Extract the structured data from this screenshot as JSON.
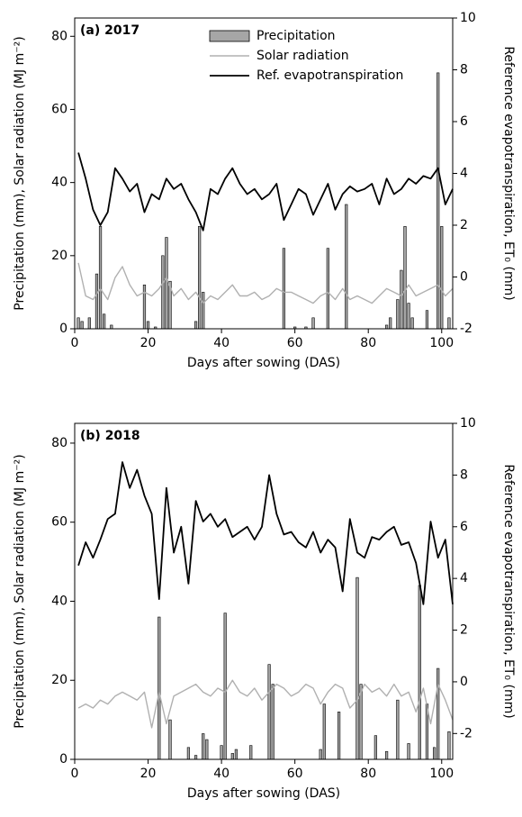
{
  "chart_data": [
    {
      "type": "bar-line",
      "title": "(a) 2017",
      "xlabel": "Days after sowing (DAS)",
      "ylabel": "Precipitation (mm), Solar radiation (MJ m⁻²)",
      "y2label": "Reference evapotranspiration, ET₀ (mm)",
      "xlim": [
        0,
        103
      ],
      "xticks": [
        0,
        20,
        40,
        60,
        80,
        100
      ],
      "ylim": [
        0,
        85
      ],
      "yticks": [
        0,
        20,
        40,
        60,
        80
      ],
      "y2lim": [
        -2,
        10
      ],
      "y2ticks": [
        -2,
        0,
        2,
        4,
        6,
        8,
        10
      ],
      "legend": "top",
      "series": [
        {
          "name": "Precipitation",
          "type": "bar",
          "axis": "y",
          "color": "#a6a6a6",
          "x": [
            1,
            2,
            4,
            6,
            7,
            8,
            10,
            19,
            20,
            22,
            24,
            25,
            26,
            33,
            34,
            35,
            57,
            60,
            63,
            65,
            69,
            74,
            85,
            86,
            88,
            89,
            90,
            91,
            92,
            96,
            99,
            100,
            102
          ],
          "values": [
            3,
            2,
            3,
            15,
            28,
            4,
            1,
            12,
            2,
            0.5,
            20,
            25,
            13,
            2,
            28,
            10,
            22,
            0.5,
            0.5,
            3,
            22,
            34,
            1,
            3,
            8,
            16,
            28,
            7,
            3,
            5,
            70,
            28,
            3
          ]
        },
        {
          "name": "Solar radiation",
          "type": "line",
          "axis": "y",
          "color": "#b0b0b0",
          "x": [
            1,
            3,
            5,
            7,
            9,
            11,
            13,
            15,
            17,
            19,
            21,
            23,
            25,
            27,
            29,
            31,
            33,
            35,
            37,
            39,
            41,
            43,
            45,
            47,
            49,
            51,
            53,
            55,
            57,
            59,
            61,
            63,
            65,
            67,
            69,
            71,
            73,
            75,
            77,
            79,
            81,
            83,
            85,
            87,
            89,
            91,
            93,
            95,
            97,
            99,
            101,
            103
          ],
          "values": [
            18,
            9,
            8,
            11,
            8,
            14,
            17,
            12,
            9,
            10,
            9,
            11,
            14,
            9,
            11,
            8,
            10,
            7,
            9,
            8,
            10,
            12,
            9,
            9,
            10,
            8,
            9,
            11,
            10,
            10,
            9,
            8,
            7,
            9,
            10,
            8,
            11,
            8,
            9,
            8,
            7,
            9,
            11,
            10,
            9,
            12,
            9,
            10,
            11,
            12,
            9,
            11
          ]
        },
        {
          "name": "Ref. evapotranspiration",
          "type": "line",
          "axis": "y2",
          "color": "#000000",
          "x": [
            1,
            3,
            5,
            7,
            9,
            11,
            13,
            15,
            17,
            19,
            21,
            23,
            25,
            27,
            29,
            31,
            33,
            35,
            37,
            39,
            41,
            43,
            45,
            47,
            49,
            51,
            53,
            55,
            57,
            59,
            61,
            63,
            65,
            67,
            69,
            71,
            73,
            75,
            77,
            79,
            81,
            83,
            85,
            87,
            89,
            91,
            93,
            95,
            97,
            99,
            101,
            103
          ],
          "values": [
            4.8,
            3.8,
            2.6,
            2.0,
            2.5,
            4.2,
            3.8,
            3.3,
            3.6,
            2.5,
            3.2,
            3.0,
            3.8,
            3.4,
            3.6,
            3.0,
            2.5,
            1.8,
            3.4,
            3.2,
            3.8,
            4.2,
            3.6,
            3.2,
            3.4,
            3.0,
            3.2,
            3.6,
            2.2,
            2.8,
            3.4,
            3.2,
            2.4,
            3.0,
            3.6,
            2.6,
            3.2,
            3.5,
            3.3,
            3.4,
            3.6,
            2.8,
            3.8,
            3.2,
            3.4,
            3.8,
            3.6,
            3.9,
            3.8,
            4.2,
            2.8,
            3.4
          ]
        }
      ]
    },
    {
      "type": "bar-line",
      "title": "(b) 2018",
      "xlabel": "Days after sowing (DAS)",
      "ylabel": "Precipitation (mm), Solar radiation (MJ m⁻²)",
      "y2label": "Reference evapotranspiration, ET₀ (mm)",
      "xlim": [
        0,
        103
      ],
      "xticks": [
        0,
        20,
        40,
        60,
        80,
        100
      ],
      "ylim": [
        0,
        85
      ],
      "yticks": [
        0,
        20,
        40,
        60,
        80
      ],
      "y2lim": [
        -3,
        10
      ],
      "y2ticks": [
        -2,
        0,
        2,
        4,
        6,
        8,
        10
      ],
      "legend": false,
      "series": [
        {
          "name": "Precipitation",
          "type": "bar",
          "axis": "y",
          "color": "#a6a6a6",
          "x": [
            23,
            26,
            31,
            33,
            35,
            36,
            40,
            41,
            43,
            44,
            48,
            53,
            54,
            67,
            68,
            72,
            77,
            78,
            82,
            85,
            88,
            91,
            94,
            96,
            98,
            99,
            102
          ],
          "values": [
            36,
            10,
            3,
            1,
            6.5,
            5,
            3.5,
            37,
            1.5,
            2.5,
            3.5,
            24,
            19,
            2.5,
            14,
            12,
            46,
            19,
            6,
            2,
            15,
            4,
            44,
            14,
            3,
            23,
            7
          ]
        },
        {
          "name": "Solar radiation",
          "type": "line",
          "axis": "y",
          "color": "#b0b0b0",
          "x": [
            1,
            3,
            5,
            7,
            9,
            11,
            13,
            15,
            17,
            19,
            21,
            23,
            25,
            27,
            29,
            31,
            33,
            35,
            37,
            39,
            41,
            43,
            45,
            47,
            49,
            51,
            53,
            55,
            57,
            59,
            61,
            63,
            65,
            67,
            69,
            71,
            73,
            75,
            77,
            79,
            81,
            83,
            85,
            87,
            89,
            91,
            93,
            95,
            97,
            99,
            101,
            103
          ],
          "values": [
            13,
            14,
            13,
            15,
            14,
            16,
            17,
            16,
            15,
            17,
            8,
            17,
            9,
            16,
            17,
            18,
            19,
            17,
            16,
            18,
            17,
            20,
            17,
            16,
            18,
            15,
            17,
            19,
            18,
            16,
            17,
            19,
            18,
            14,
            17,
            19,
            18,
            13,
            15,
            19,
            17,
            18,
            16,
            19,
            16,
            17,
            12,
            18,
            9,
            19,
            15,
            10
          ]
        },
        {
          "name": "Ref. evapotranspiration",
          "type": "line",
          "axis": "y2",
          "color": "#000000",
          "x": [
            1,
            3,
            5,
            7,
            9,
            11,
            13,
            15,
            17,
            19,
            21,
            23,
            25,
            27,
            29,
            31,
            33,
            35,
            37,
            39,
            41,
            43,
            45,
            47,
            49,
            51,
            53,
            55,
            57,
            59,
            61,
            63,
            65,
            67,
            69,
            71,
            73,
            75,
            77,
            79,
            81,
            83,
            85,
            87,
            89,
            91,
            93,
            95,
            97,
            99,
            101,
            103
          ],
          "values": [
            4.5,
            5.4,
            4.8,
            5.5,
            6.3,
            6.5,
            8.5,
            7.5,
            8.2,
            7.2,
            6.5,
            3.2,
            7.5,
            5.0,
            6.0,
            3.8,
            7.0,
            6.2,
            6.5,
            6.0,
            6.3,
            5.6,
            5.8,
            6.0,
            5.5,
            6.0,
            8.0,
            6.5,
            5.7,
            5.8,
            5.4,
            5.2,
            5.8,
            5.0,
            5.5,
            5.2,
            3.5,
            6.3,
            5.0,
            4.8,
            5.6,
            5.5,
            5.8,
            6.0,
            5.3,
            5.4,
            4.6,
            3.0,
            6.2,
            4.8,
            5.5,
            3.0
          ]
        }
      ]
    }
  ]
}
